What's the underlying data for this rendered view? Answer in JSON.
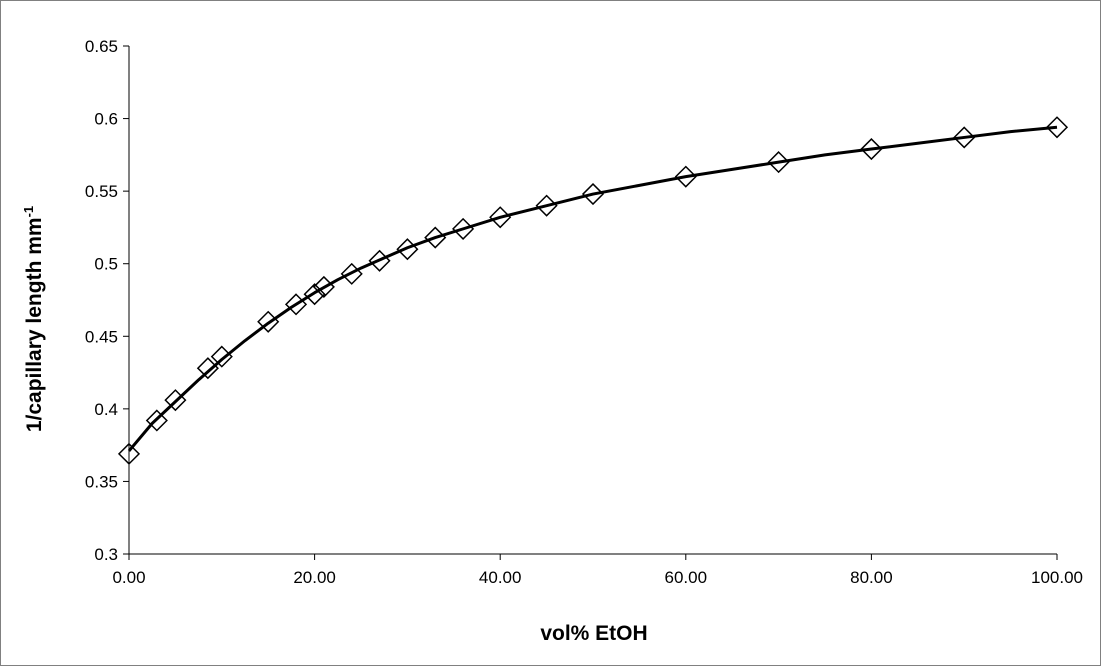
{
  "chart_data": {
    "type": "scatter",
    "title": "",
    "xlabel": "vol% EtOH",
    "ylabel": "1/capillary length  mm",
    "ylabel_superscript": "-1",
    "xlim": [
      0,
      100
    ],
    "ylim": [
      0.3,
      0.65
    ],
    "x_ticks": [
      "0.00",
      "20.00",
      "40.00",
      "60.00",
      "80.00",
      "100.00"
    ],
    "y_ticks": [
      "0.3",
      "0.35",
      "0.4",
      "0.45",
      "0.5",
      "0.55",
      "0.6",
      "0.65"
    ],
    "grid": false,
    "legend": "none",
    "series": [
      {
        "marker": "open-diamond",
        "x": [
          0,
          3,
          5,
          8.5,
          10,
          15,
          18,
          20,
          21,
          24,
          27,
          30,
          33,
          36,
          40,
          45,
          50,
          60,
          70,
          80,
          90,
          100
        ],
        "y": [
          0.369,
          0.392,
          0.406,
          0.428,
          0.436,
          0.46,
          0.472,
          0.479,
          0.484,
          0.493,
          0.502,
          0.51,
          0.518,
          0.524,
          0.532,
          0.54,
          0.548,
          0.56,
          0.57,
          0.579,
          0.587,
          0.594
        ]
      }
    ],
    "fit_line": {
      "x": [
        0,
        2.5,
        5,
        7.5,
        10,
        12.5,
        15,
        17.5,
        20,
        22.5,
        25,
        27.5,
        30,
        33,
        36,
        40,
        45,
        50,
        55,
        60,
        65,
        70,
        75,
        80,
        85,
        90,
        95,
        100
      ],
      "y": [
        0.371,
        0.39,
        0.405,
        0.42,
        0.434,
        0.447,
        0.459,
        0.47,
        0.48,
        0.489,
        0.497,
        0.504,
        0.511,
        0.518,
        0.524,
        0.532,
        0.54,
        0.548,
        0.554,
        0.56,
        0.565,
        0.57,
        0.575,
        0.579,
        0.583,
        0.587,
        0.591,
        0.594
      ]
    },
    "colors": {
      "line": "#000000",
      "marker_stroke": "#000000",
      "axis": "#000000"
    }
  }
}
